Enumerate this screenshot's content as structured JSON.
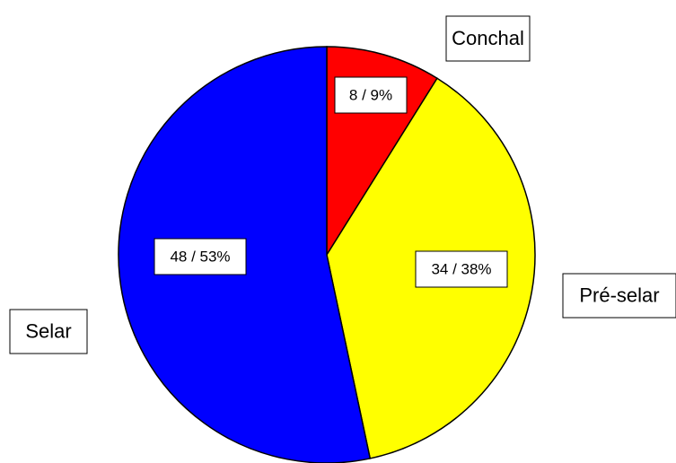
{
  "chart_data": {
    "type": "pie",
    "categories": [
      "Conchal",
      "Pré-selar",
      "Selar"
    ],
    "values": [
      8,
      34,
      48
    ],
    "value_labels": [
      "8 / 9%",
      "34 / 38%",
      "48 / 53%"
    ],
    "colors": [
      "#ff0000",
      "#ffff00",
      "#0000ff"
    ]
  }
}
